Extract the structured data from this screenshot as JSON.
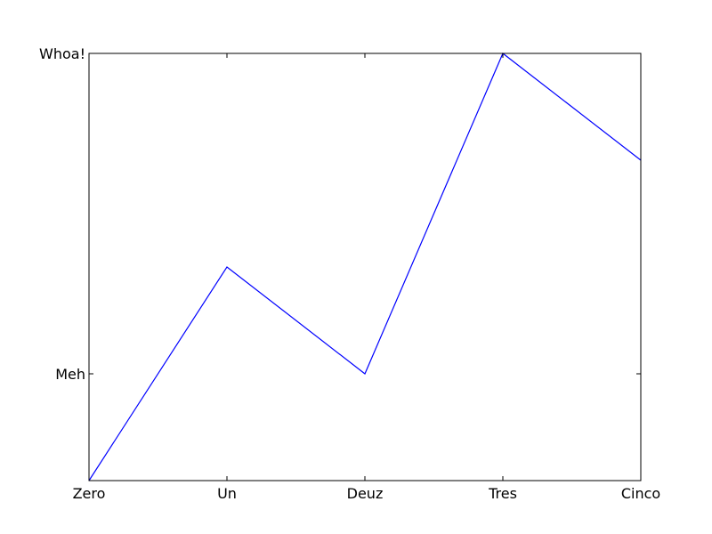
{
  "chart_data": {
    "type": "line",
    "x": [
      0,
      1,
      2,
      3,
      4
    ],
    "x_tick_values": [
      0,
      1,
      2,
      3,
      4
    ],
    "x_tick_labels": [
      "Zero",
      "Un",
      "Deuz",
      "Tres",
      "Cinco"
    ],
    "xlim": [
      0,
      4
    ],
    "y_tick_values": [
      1,
      4
    ],
    "y_tick_labels": [
      "Meh",
      "Whoa!"
    ],
    "ylim": [
      0,
      4
    ],
    "series": [
      {
        "values": [
          0,
          2,
          1,
          4,
          3
        ],
        "color": "#0000ff"
      }
    ],
    "grid": false,
    "legend": "none"
  }
}
